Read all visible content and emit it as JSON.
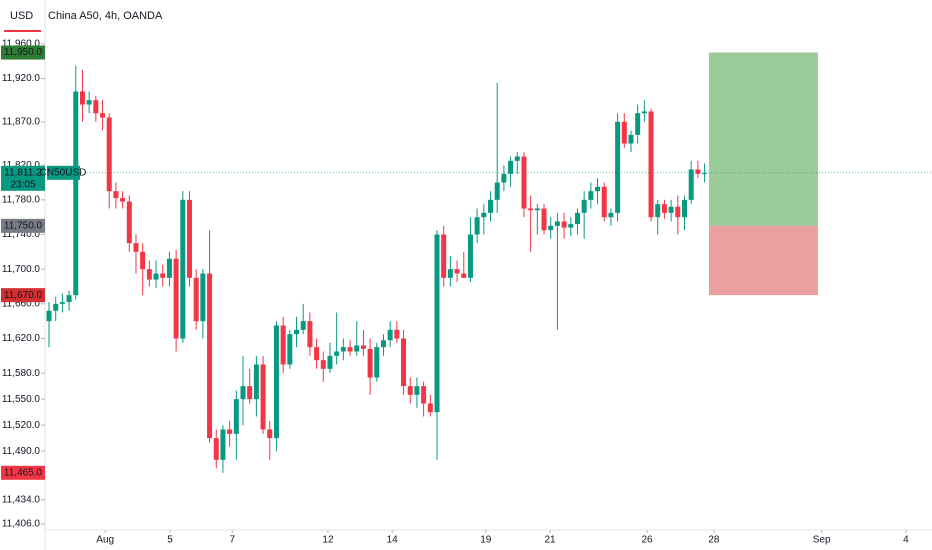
{
  "chart_data": {
    "type": "candlestick",
    "currency": "USD",
    "title": "China A50, 4h, OANDA",
    "up_color": "#089981",
    "down_color": "#f23645",
    "open": [
      11640,
      11652,
      11660,
      11662,
      11670,
      11905,
      11890,
      11895,
      11880,
      11875,
      11790,
      11782,
      11778,
      11730,
      11720,
      11700,
      11688,
      11695,
      11690,
      11712,
      11620,
      11780,
      11690,
      11640,
      11695,
      11505,
      11480,
      11515,
      11510,
      11550,
      11565,
      11550,
      11590,
      11515,
      11505,
      11635,
      11590,
      11625,
      11630,
      11640,
      11610,
      11595,
      11585,
      11600,
      11605,
      11610,
      11605,
      11612,
      11608,
      11575,
      11610,
      11618,
      11630,
      11620,
      11565,
      11555,
      11565,
      11545,
      11535,
      11740,
      11690,
      11700,
      11695,
      11690,
      11740,
      11760,
      11765,
      11780,
      11800,
      11810,
      11825,
      11830,
      11770,
      11768,
      11770,
      11745,
      11750,
      11755,
      11748,
      11752,
      11765,
      11780,
      11790,
      11795,
      11760,
      11765,
      11870,
      11845,
      11855,
      11880,
      11882,
      11760,
      11775,
      11765,
      11772,
      11760,
      11780,
      11815,
      11810
    ],
    "high": [
      11662,
      11668,
      11672,
      11675,
      11935,
      11930,
      11905,
      11900,
      11895,
      11880,
      11800,
      11790,
      11785,
      11740,
      11730,
      11710,
      11710,
      11705,
      11720,
      11722,
      11790,
      11790,
      11700,
      11700,
      11745,
      11515,
      11520,
      11525,
      11560,
      11600,
      11585,
      11600,
      11600,
      11525,
      11640,
      11645,
      11630,
      11645,
      11660,
      11650,
      11620,
      11605,
      11615,
      11650,
      11620,
      11618,
      11640,
      11630,
      11620,
      11615,
      11625,
      11640,
      11640,
      11630,
      11575,
      11575,
      11570,
      11555,
      11745,
      11750,
      11715,
      11710,
      11720,
      11760,
      11770,
      11775,
      11790,
      11915,
      11820,
      11830,
      11835,
      11835,
      11785,
      11775,
      11775,
      11760,
      11765,
      11765,
      11760,
      11770,
      11790,
      11800,
      11805,
      11800,
      11770,
      11880,
      11880,
      11860,
      11890,
      11895,
      11885,
      11780,
      11780,
      11780,
      11785,
      11785,
      11825,
      11825,
      11822
    ],
    "low": [
      11610,
      11640,
      11650,
      11652,
      11665,
      11870,
      11880,
      11870,
      11860,
      11770,
      11770,
      11770,
      11720,
      11695,
      11670,
      11680,
      11678,
      11680,
      11680,
      11605,
      11615,
      11680,
      11630,
      11620,
      11500,
      11470,
      11465,
      11495,
      11480,
      11520,
      11545,
      11530,
      11510,
      11480,
      11490,
      11580,
      11585,
      11610,
      11625,
      11600,
      11585,
      11570,
      11580,
      11590,
      11595,
      11600,
      11600,
      11600,
      11555,
      11570,
      11600,
      11610,
      11615,
      11555,
      11545,
      11540,
      11530,
      11530,
      11480,
      11680,
      11680,
      11685,
      11690,
      11685,
      11730,
      11740,
      11755,
      11765,
      11790,
      11795,
      11810,
      11760,
      11720,
      11740,
      11740,
      11735,
      11630,
      11735,
      11738,
      11740,
      11735,
      11770,
      11775,
      11755,
      11750,
      11755,
      11840,
      11835,
      11845,
      11870,
      11755,
      11740,
      11758,
      11755,
      11740,
      11745,
      11775,
      11805,
      11800
    ],
    "close": [
      11652,
      11660,
      11662,
      11670,
      11905,
      11890,
      11895,
      11880,
      11875,
      11790,
      11782,
      11778,
      11730,
      11720,
      11700,
      11688,
      11695,
      11690,
      11712,
      11620,
      11780,
      11690,
      11640,
      11695,
      11505,
      11480,
      11515,
      11510,
      11550,
      11565,
      11550,
      11590,
      11515,
      11505,
      11635,
      11590,
      11625,
      11630,
      11640,
      11610,
      11595,
      11585,
      11600,
      11605,
      11610,
      11605,
      11612,
      11608,
      11575,
      11610,
      11618,
      11630,
      11620,
      11565,
      11555,
      11565,
      11545,
      11535,
      11740,
      11690,
      11700,
      11695,
      11690,
      11740,
      11760,
      11765,
      11780,
      11800,
      11810,
      11825,
      11830,
      11770,
      11768,
      11770,
      11745,
      11750,
      11755,
      11748,
      11752,
      11765,
      11780,
      11790,
      11795,
      11760,
      11765,
      11870,
      11845,
      11855,
      11880,
      11882,
      11760,
      11775,
      11765,
      11772,
      11760,
      11780,
      11815,
      11810,
      11811
    ],
    "xlim": [
      -0.6,
      132
    ],
    "xticks": [
      {
        "value": 8.4,
        "label": "Aug"
      },
      {
        "value": 18.1,
        "label": "5"
      },
      {
        "value": 27.4,
        "label": "7"
      },
      {
        "value": 41.7,
        "label": "12"
      },
      {
        "value": 51.3,
        "label": "14"
      },
      {
        "value": 65.3,
        "label": "19"
      },
      {
        "value": 74.9,
        "label": "21"
      },
      {
        "value": 89.4,
        "label": "26"
      },
      {
        "value": 99.4,
        "label": "28"
      },
      {
        "value": 115.5,
        "label": "Sep"
      },
      {
        "value": 128.1,
        "label": "4"
      }
    ],
    "ylim": [
      11399,
      11976
    ],
    "yticks": [
      {
        "value": 11960,
        "label": "11,960.0"
      },
      {
        "value": 11920,
        "label": "11,920.0"
      },
      {
        "value": 11870,
        "label": "11,870.0"
      },
      {
        "value": 11820,
        "label": "11,820.0"
      },
      {
        "value": 11780,
        "label": "11,780.0"
      },
      {
        "value": 11740,
        "label": "11,740.0"
      },
      {
        "value": 11700,
        "label": "11,700.0"
      },
      {
        "value": 11660,
        "label": "11,660.0"
      },
      {
        "value": 11620,
        "label": "11,620.0"
      },
      {
        "value": 11580,
        "label": "11,580.0"
      },
      {
        "value": 11550,
        "label": "11,550.0"
      },
      {
        "value": 11520,
        "label": "11,520.0"
      },
      {
        "value": 11490,
        "label": "11,490.0"
      },
      {
        "value": 11434,
        "label": "11,434.0"
      },
      {
        "value": 11406,
        "label": "11,406.0"
      }
    ],
    "last_price": {
      "value": 11811.2,
      "label": "11,811.2",
      "symbol": "CN50USD",
      "countdown": "23:05"
    },
    "position": {
      "target": {
        "value": 11950,
        "label": "11,950.0"
      },
      "entry": {
        "value": 11750,
        "label": "11,750.0"
      },
      "stop": {
        "value": 11670,
        "label": "11,670.0"
      }
    },
    "alert": {
      "value": 11465,
      "label": "11,465.0"
    }
  }
}
